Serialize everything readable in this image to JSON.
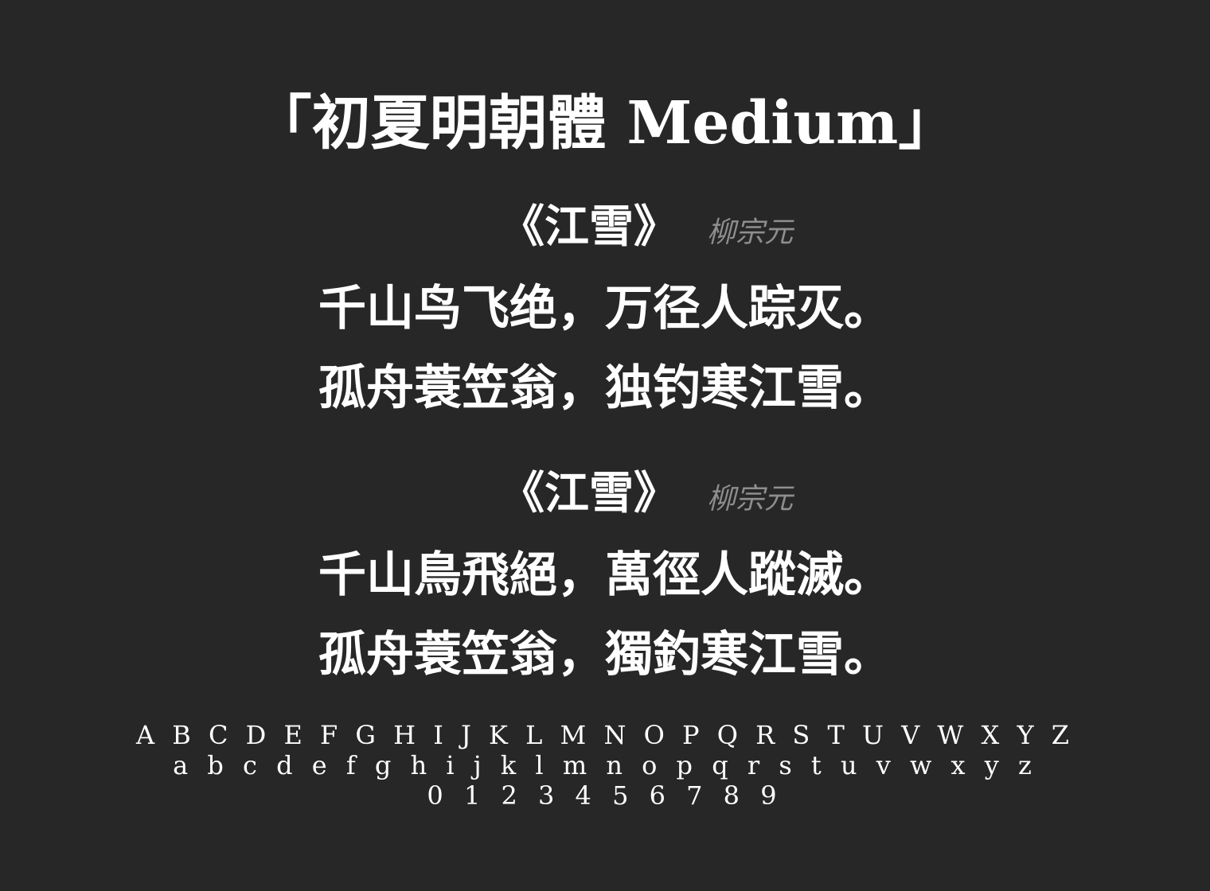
{
  "title": "「初夏明朝體 Medium」",
  "poems": [
    {
      "title": "《江雪》",
      "author": "柳宗元",
      "lines": [
        "千山鸟飞绝，万径人踪灭。",
        "孤舟蓑笠翁，独钓寒江雪。"
      ]
    },
    {
      "title": "《江雪》",
      "author": "柳宗元",
      "lines": [
        "千山鳥飛絕，萬徑人蹤滅。",
        "孤舟蓑笠翁，獨釣寒江雪。"
      ]
    }
  ],
  "specimen": {
    "uppercase": "A B C D E F G H I J K L M N O P Q R S T U V W X Y Z",
    "lowercase": "a b c d e f g h i j k l m n o p q r s t u v w x y z",
    "digits": "0 1 2 3 4 5 6 7 8 9"
  },
  "colors": {
    "background": "#272727",
    "text": "#ffffff",
    "author": "#8e8e8e"
  }
}
